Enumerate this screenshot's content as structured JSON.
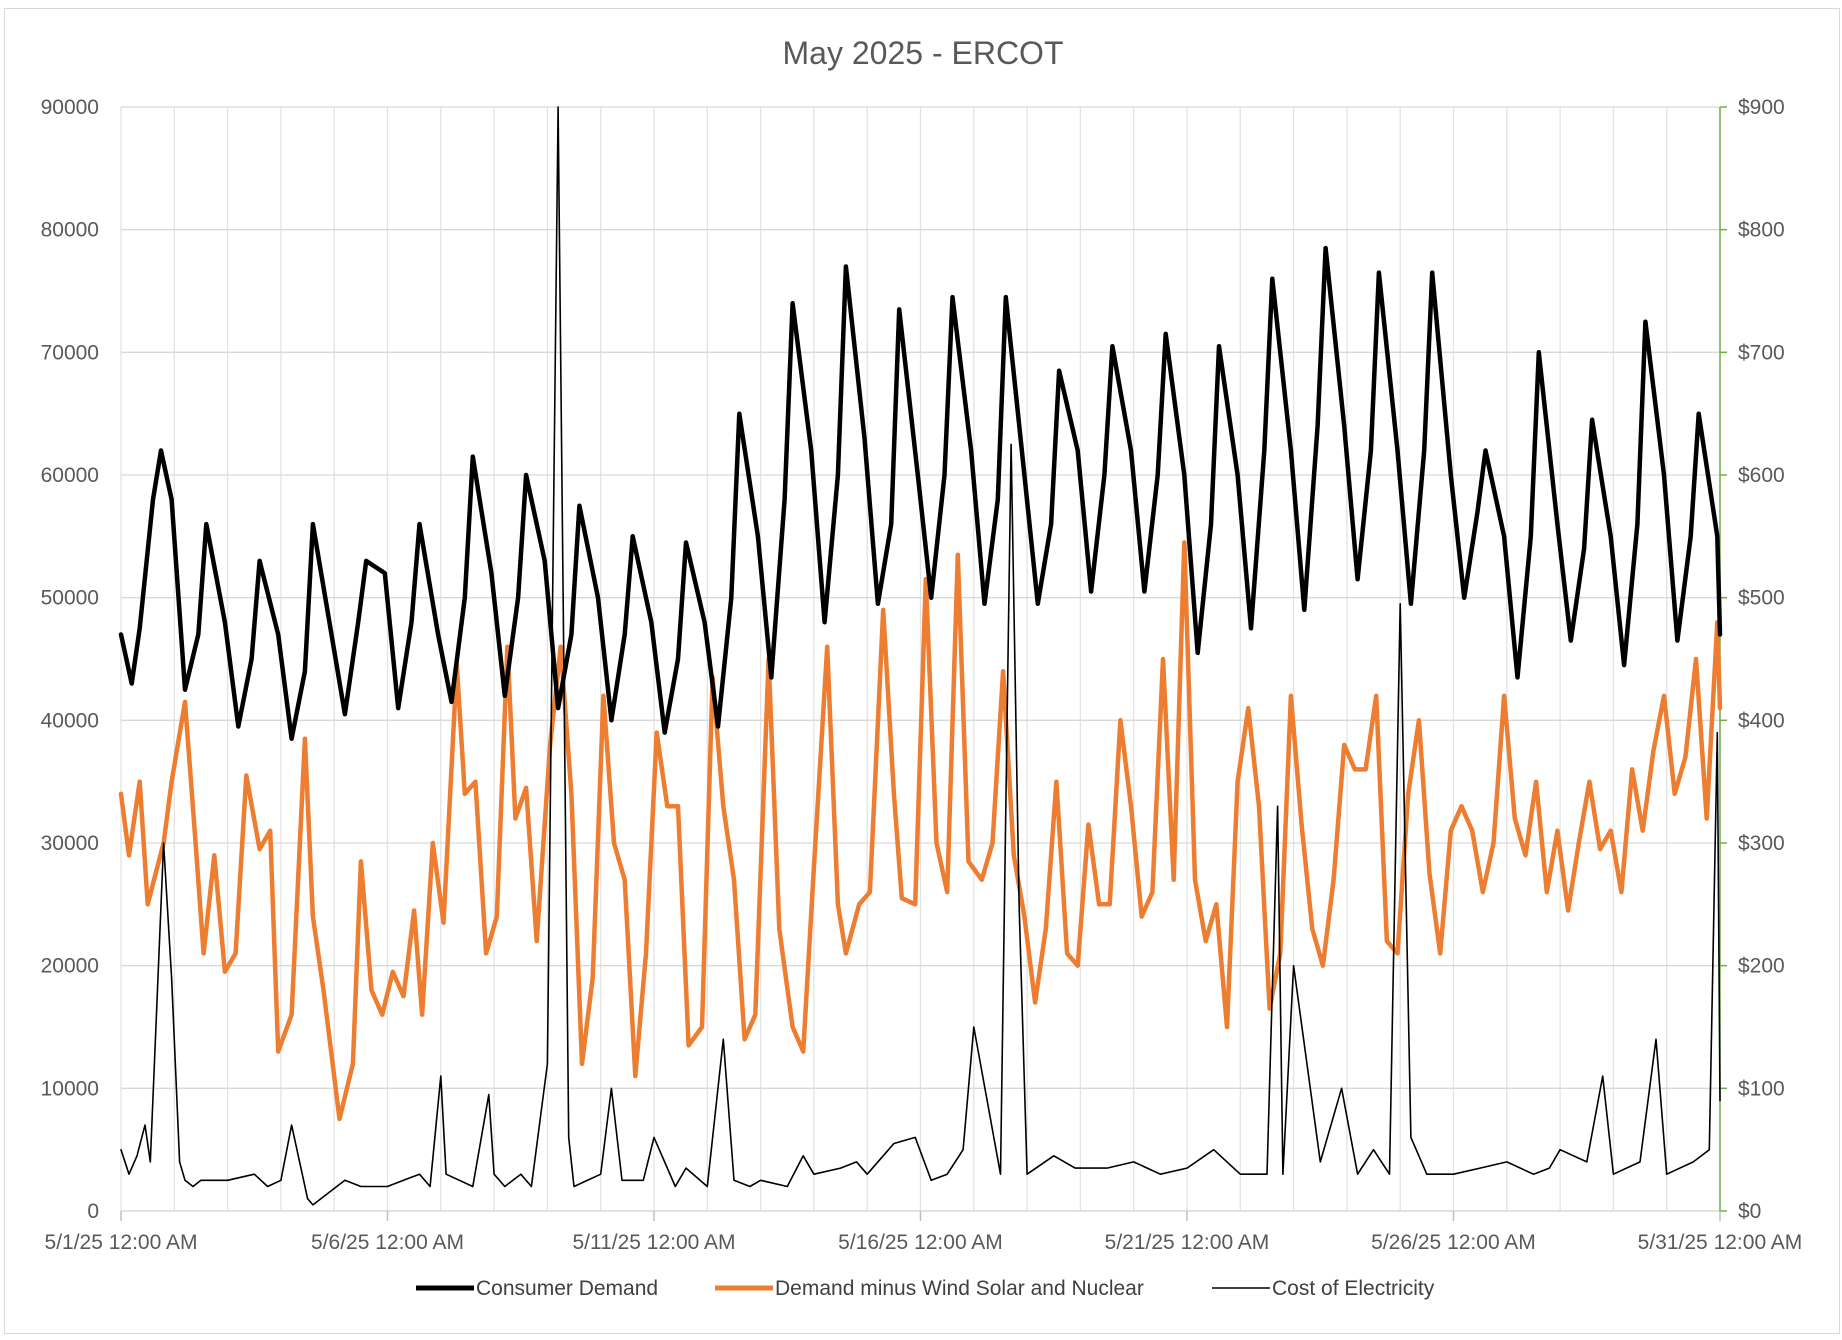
{
  "chart_data": {
    "type": "line",
    "title": "May 2025 - ERCOT",
    "xlabel": "",
    "ylabel": "",
    "y2label": "",
    "x_start": "5/1/25 12:00 AM",
    "x_end": "5/31/25 12:00 AM",
    "x_unit": "days since 5/1/25 12:00 AM",
    "xlim": [
      0,
      30
    ],
    "ylim": [
      0,
      90000
    ],
    "y2lim": [
      0,
      900
    ],
    "grid": true,
    "legend_position": "bottom",
    "x_tick_values": [
      0,
      5,
      10,
      15,
      20,
      25,
      30
    ],
    "x_tick_labels": [
      "5/1/25 12:00 AM",
      "5/6/25 12:00 AM",
      "5/11/25 12:00 AM",
      "5/16/25 12:00 AM",
      "5/21/25 12:00 AM",
      "5/26/25 12:00 AM",
      "5/31/25 12:00 AM"
    ],
    "y_ticks": [
      0,
      10000,
      20000,
      30000,
      40000,
      50000,
      60000,
      70000,
      80000,
      90000
    ],
    "y_tick_labels": [
      "0",
      "10000",
      "20000",
      "30000",
      "40000",
      "50000",
      "60000",
      "70000",
      "80000",
      "90000"
    ],
    "y2_ticks": [
      0,
      100,
      200,
      300,
      400,
      500,
      600,
      700,
      800,
      900
    ],
    "y2_tick_labels": [
      "$0",
      "$100",
      "$200",
      "$300",
      "$400",
      "$500",
      "$600",
      "$700",
      "$800",
      "$900"
    ],
    "series": [
      {
        "name": "Consumer Demand",
        "axis": "left",
        "color": "#000000",
        "style": "thick",
        "x": [
          0,
          0.2,
          0.35,
          0.6,
          0.75,
          0.95,
          1.2,
          1.45,
          1.6,
          1.95,
          2.2,
          2.45,
          2.6,
          2.95,
          3.2,
          3.45,
          3.6,
          3.95,
          4.2,
          4.45,
          4.6,
          4.95,
          5.2,
          5.45,
          5.6,
          5.95,
          6.2,
          6.45,
          6.6,
          6.95,
          7.2,
          7.45,
          7.6,
          7.95,
          8.2,
          8.45,
          8.6,
          8.95,
          9.2,
          9.45,
          9.6,
          9.95,
          10.2,
          10.45,
          10.6,
          10.95,
          11.2,
          11.45,
          11.6,
          11.95,
          12.2,
          12.45,
          12.6,
          12.95,
          13.2,
          13.45,
          13.6,
          13.95,
          14.2,
          14.45,
          14.6,
          14.95,
          15.2,
          15.45,
          15.6,
          15.95,
          16.2,
          16.45,
          16.6,
          16.95,
          17.2,
          17.45,
          17.6,
          17.95,
          18.2,
          18.45,
          18.6,
          18.95,
          19.2,
          19.45,
          19.6,
          19.95,
          20.2,
          20.45,
          20.6,
          20.95,
          21.2,
          21.45,
          21.6,
          21.95,
          22.2,
          22.45,
          22.6,
          22.95,
          23.2,
          23.45,
          23.6,
          23.95,
          24.2,
          24.45,
          24.6,
          24.95,
          25.2,
          25.45,
          25.6,
          25.95,
          26.2,
          26.45,
          26.6,
          26.95,
          27.2,
          27.45,
          27.6,
          27.95,
          28.2,
          28.45,
          28.6,
          28.95,
          29.2,
          29.45,
          29.6,
          29.95,
          30
        ],
        "values": [
          47000,
          43000,
          47500,
          58000,
          62000,
          58000,
          42500,
          47000,
          56000,
          48000,
          39500,
          45000,
          53000,
          47000,
          38500,
          44000,
          56000,
          47000,
          40500,
          48000,
          53000,
          52000,
          41000,
          48000,
          56000,
          47000,
          41500,
          50000,
          61500,
          52000,
          42000,
          50000,
          60000,
          53000,
          41000,
          47000,
          57500,
          50000,
          40000,
          47000,
          55000,
          48000,
          39000,
          45000,
          54500,
          48000,
          39500,
          50000,
          65000,
          55000,
          43500,
          58000,
          74000,
          62000,
          48000,
          60000,
          77000,
          63000,
          49500,
          56000,
          73500,
          60000,
          50000,
          60000,
          74500,
          62000,
          49500,
          58000,
          74500,
          60000,
          49500,
          56000,
          68500,
          62000,
          50500,
          60000,
          70500,
          62000,
          50500,
          60000,
          71500,
          60000,
          45500,
          56000,
          70500,
          60000,
          47500,
          62000,
          76000,
          62000,
          49000,
          64000,
          78500,
          64000,
          51500,
          62000,
          76500,
          62000,
          49500,
          62000,
          76500,
          60000,
          50000,
          57000,
          62000,
          55000,
          43500,
          55000,
          70000,
          56000,
          46500,
          54000,
          64500,
          55000,
          44500,
          56000,
          72500,
          60000,
          46500,
          55000,
          65000,
          55000,
          47000
        ]
      },
      {
        "name": "Demand minus Wind Solar and Nuclear",
        "axis": "left",
        "color": "#ED7D31",
        "style": "thick",
        "x": [
          0,
          0.15,
          0.35,
          0.5,
          0.8,
          0.95,
          1.2,
          1.4,
          1.55,
          1.75,
          1.95,
          2.15,
          2.35,
          2.6,
          2.8,
          2.95,
          3.2,
          3.45,
          3.6,
          3.8,
          4.1,
          4.35,
          4.5,
          4.7,
          4.9,
          5.1,
          5.3,
          5.5,
          5.65,
          5.85,
          6.05,
          6.3,
          6.45,
          6.65,
          6.85,
          7.05,
          7.25,
          7.4,
          7.6,
          7.8,
          8.05,
          8.25,
          8.45,
          8.65,
          8.85,
          9.05,
          9.25,
          9.45,
          9.65,
          9.85,
          10.05,
          10.25,
          10.45,
          10.65,
          10.9,
          11.1,
          11.3,
          11.5,
          11.7,
          11.9,
          12.15,
          12.35,
          12.6,
          12.8,
          13.0,
          13.25,
          13.45,
          13.6,
          13.85,
          14.05,
          14.3,
          14.5,
          14.65,
          14.9,
          15.1,
          15.3,
          15.5,
          15.7,
          15.9,
          16.15,
          16.35,
          16.55,
          16.75,
          16.95,
          17.15,
          17.35,
          17.55,
          17.75,
          17.95,
          18.15,
          18.35,
          18.55,
          18.75,
          18.95,
          19.15,
          19.35,
          19.55,
          19.75,
          19.95,
          20.15,
          20.35,
          20.55,
          20.75,
          20.95,
          21.15,
          21.35,
          21.55,
          21.75,
          21.95,
          22.15,
          22.35,
          22.55,
          22.75,
          22.95,
          23.15,
          23.35,
          23.55,
          23.75,
          23.95,
          24.15,
          24.35,
          24.55,
          24.75,
          24.95,
          25.15,
          25.35,
          25.55,
          25.75,
          25.95,
          26.15,
          26.35,
          26.55,
          26.75,
          26.95,
          27.15,
          27.35,
          27.55,
          27.75,
          27.95,
          28.15,
          28.35,
          28.55,
          28.75,
          28.95,
          29.15,
          29.35,
          29.55,
          29.75,
          29.95,
          30
        ],
        "values": [
          34000,
          29000,
          35000,
          25000,
          30000,
          35000,
          41500,
          30000,
          21000,
          29000,
          19500,
          21000,
          35500,
          29500,
          31000,
          13000,
          16000,
          38500,
          24000,
          18000,
          7500,
          12000,
          28500,
          18000,
          16000,
          19500,
          17500,
          24500,
          16000,
          30000,
          23500,
          44500,
          34000,
          35000,
          21000,
          24000,
          46000,
          32000,
          34500,
          22000,
          38000,
          46000,
          34000,
          12000,
          19000,
          42000,
          30000,
          27000,
          11000,
          21000,
          39000,
          33000,
          33000,
          13500,
          15000,
          43500,
          33000,
          27000,
          14000,
          16000,
          45000,
          23000,
          15000,
          13000,
          28000,
          46000,
          25000,
          21000,
          25000,
          26000,
          49000,
          34000,
          25500,
          25000,
          51500,
          30000,
          26000,
          53500,
          28500,
          27000,
          30000,
          44000,
          29000,
          24000,
          17000,
          23000,
          35000,
          21000,
          20000,
          31500,
          25000,
          25000,
          40000,
          33000,
          24000,
          26000,
          45000,
          27000,
          54500,
          27000,
          22000,
          25000,
          15000,
          35000,
          41000,
          33000,
          16500,
          21000,
          42000,
          31500,
          23000,
          20000,
          27000,
          38000,
          36000,
          36000,
          42000,
          22000,
          21000,
          34000,
          40000,
          27500,
          21000,
          31000,
          33000,
          31000,
          26000,
          30000,
          42000,
          32000,
          29000,
          35000,
          26000,
          31000,
          24500,
          30000,
          35000,
          29500,
          31000,
          26000,
          36000,
          31000,
          37500,
          42000,
          34000,
          37000,
          45000,
          32000,
          48000,
          41000
        ]
      },
      {
        "name": "Cost of Electricity",
        "axis": "right",
        "color": "#000000",
        "style": "thin",
        "x": [
          0,
          0.15,
          0.3,
          0.45,
          0.55,
          0.8,
          0.95,
          1.1,
          1.2,
          1.35,
          1.5,
          2.0,
          2.5,
          2.75,
          3.0,
          3.2,
          3.5,
          3.6,
          4.2,
          4.5,
          4.7,
          5.0,
          5.3,
          5.6,
          5.8,
          6.0,
          6.1,
          6.6,
          6.9,
          7.0,
          7.2,
          7.5,
          7.7,
          8.0,
          8.2,
          8.4,
          8.5,
          9.0,
          9.2,
          9.4,
          9.8,
          10.0,
          10.4,
          10.6,
          11.0,
          11.3,
          11.5,
          11.8,
          12.0,
          12.5,
          12.8,
          13.0,
          13.5,
          13.8,
          14.0,
          14.5,
          14.9,
          15.2,
          15.5,
          15.8,
          16.0,
          16.5,
          16.7,
          16.85,
          17.0,
          17.5,
          17.9,
          18.5,
          19.0,
          19.5,
          20.0,
          20.5,
          21.0,
          21.5,
          21.7,
          21.8,
          22.0,
          22.5,
          22.9,
          23.2,
          23.5,
          23.8,
          24.0,
          24.2,
          24.5,
          25.0,
          25.5,
          26.0,
          26.5,
          26.8,
          27.0,
          27.5,
          27.8,
          28.0,
          28.5,
          28.8,
          29.0,
          29.5,
          29.8,
          29.95,
          30
        ],
        "values": [
          50,
          30,
          45,
          70,
          40,
          300,
          190,
          40,
          25,
          20,
          25,
          25,
          30,
          20,
          25,
          70,
          10,
          5,
          25,
          20,
          20,
          20,
          25,
          30,
          20,
          110,
          30,
          20,
          95,
          30,
          20,
          30,
          20,
          120,
          900,
          60,
          20,
          30,
          100,
          25,
          25,
          60,
          20,
          35,
          20,
          140,
          25,
          20,
          25,
          20,
          45,
          30,
          35,
          40,
          30,
          55,
          60,
          25,
          30,
          50,
          150,
          30,
          625,
          250,
          30,
          45,
          35,
          35,
          40,
          30,
          35,
          50,
          30,
          30,
          330,
          30,
          200,
          40,
          100,
          30,
          50,
          30,
          495,
          60,
          30,
          30,
          35,
          40,
          30,
          35,
          50,
          40,
          110,
          30,
          40,
          140,
          30,
          40,
          50,
          390,
          90
        ]
      }
    ]
  }
}
